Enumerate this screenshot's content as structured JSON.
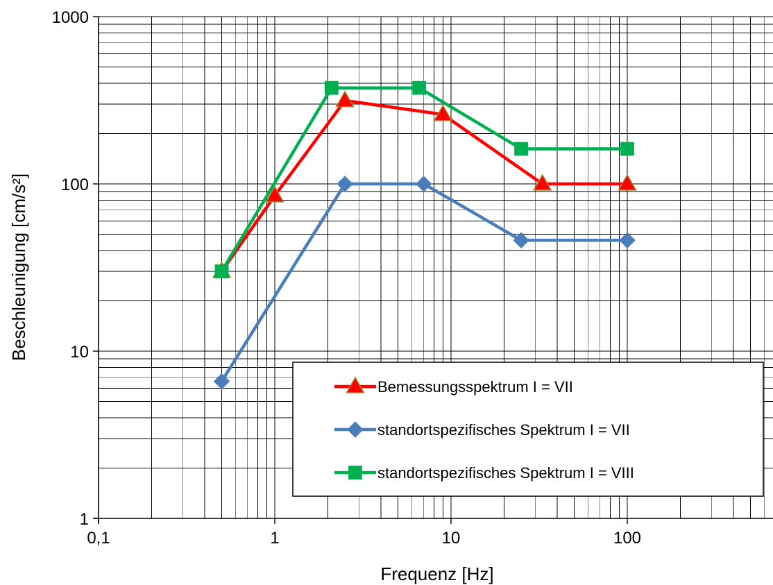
{
  "chart_data": {
    "type": "line",
    "x_scale": "log",
    "y_scale": "log",
    "xlim": [
      0.1,
      700
    ],
    "ylim": [
      1,
      1000
    ],
    "xlabel": "Frequenz  [Hz]",
    "ylabel": "Beschleunigung [cm/s²]",
    "x_ticks": [
      {
        "value": 0.1,
        "label": "0,1"
      },
      {
        "value": 1,
        "label": "1"
      },
      {
        "value": 10,
        "label": "10"
      },
      {
        "value": 100,
        "label": "100"
      }
    ],
    "y_ticks": [
      {
        "value": 1,
        "label": "1"
      },
      {
        "value": 10,
        "label": "10"
      },
      {
        "value": 100,
        "label": "100"
      },
      {
        "value": 1000,
        "label": "1000"
      }
    ],
    "grid": "major and minor, both axes",
    "legend_position": "bottom-right",
    "series": [
      {
        "name": "Bemessungsspektrum I = VII",
        "color": "#ff0000",
        "marker": "triangle",
        "marker_fill": "#ff0000",
        "marker_stroke": "#9b8a2a",
        "x": [
          0.5,
          1.0,
          2.5,
          9.0,
          33.0,
          100.0
        ],
        "y": [
          30,
          85,
          315,
          260,
          100,
          100
        ]
      },
      {
        "name": "standortspezifisches Spektrum I = VII",
        "color": "#4a7ebb",
        "marker": "diamond",
        "marker_fill": "#4a7ebb",
        "marker_stroke": "#4a7ebb",
        "x": [
          0.5,
          2.5,
          7.0,
          25.0,
          100.0
        ],
        "y": [
          6.6,
          100,
          100,
          46,
          46
        ]
      },
      {
        "name": "standortspezifisches Spektrum I = VIII",
        "color": "#00b050",
        "marker": "square",
        "marker_fill": "#00b050",
        "marker_stroke": "#00b050",
        "x": [
          0.5,
          2.1,
          6.6,
          25.0,
          100.0
        ],
        "y": [
          30,
          375,
          375,
          162,
          162
        ]
      }
    ]
  }
}
